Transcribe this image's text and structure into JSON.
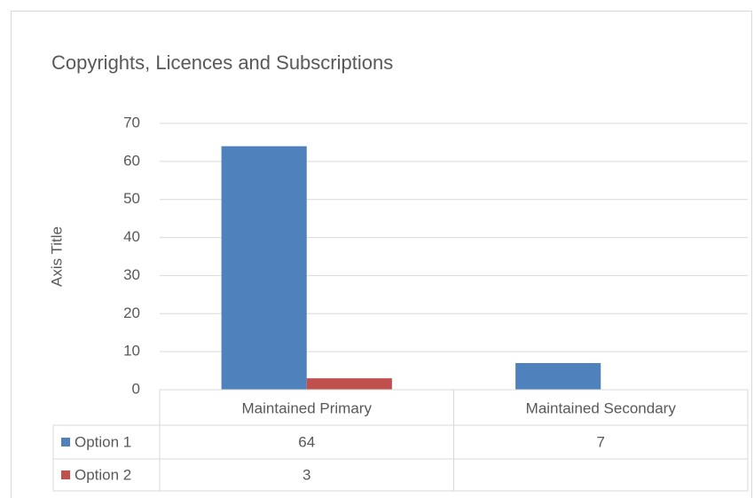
{
  "chart_data": {
    "type": "bar",
    "title": "Copyrights, Licences and Subscriptions",
    "y_axis_label": "Axis Title",
    "categories": [
      "Maintained Primary",
      "Maintained Secondary"
    ],
    "series": [
      {
        "name": "Option 1",
        "color": "#4f81bd",
        "values": [
          64,
          7
        ]
      },
      {
        "name": "Option 2",
        "color": "#c0504d",
        "values": [
          3,
          null
        ]
      }
    ],
    "ylim": [
      0,
      70
    ],
    "yticks": [
      0,
      10,
      20,
      30,
      40,
      50,
      60,
      70
    ],
    "grid": true,
    "data_table": true
  }
}
